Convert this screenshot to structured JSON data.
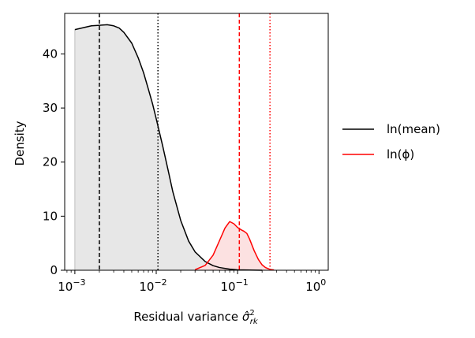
{
  "chart_data": {
    "type": "area",
    "xscale": "log",
    "xlabel": "Residual variance",
    "xlabel_math": "σ̂²rk",
    "ylabel": "Density",
    "xlim": [
      0.00075,
      1.3
    ],
    "ylim": [
      0,
      47.5
    ],
    "xticks": [
      0.001,
      0.01,
      0.1,
      1
    ],
    "xtick_labels": [
      {
        "base": "10",
        "exp": "−3"
      },
      {
        "base": "10",
        "exp": "−2"
      },
      {
        "base": "10",
        "exp": "−1"
      },
      {
        "base": "10",
        "exp": "0"
      }
    ],
    "yticks": [
      0,
      10,
      20,
      30,
      40
    ],
    "ytick_labels": [
      "0",
      "10",
      "20",
      "30",
      "40"
    ],
    "legend_placement": "outside right",
    "series": [
      {
        "name": "ln(mean)",
        "color": "#000000",
        "fill": "#e3e3e3",
        "points": [
          [
            0.001,
            44.5
          ],
          [
            0.0013,
            44.9
          ],
          [
            0.0016,
            45.2
          ],
          [
            0.002,
            45.3
          ],
          [
            0.0025,
            45.4
          ],
          [
            0.003,
            45.2
          ],
          [
            0.0035,
            44.8
          ],
          [
            0.004,
            44.0
          ],
          [
            0.005,
            42.0
          ],
          [
            0.006,
            39.3
          ],
          [
            0.007,
            36.5
          ],
          [
            0.008,
            33.5
          ],
          [
            0.009,
            30.8
          ],
          [
            0.01,
            28.0
          ],
          [
            0.012,
            23.0
          ],
          [
            0.014,
            18.5
          ],
          [
            0.016,
            14.5
          ],
          [
            0.02,
            9.2
          ],
          [
            0.025,
            5.4
          ],
          [
            0.03,
            3.4
          ],
          [
            0.04,
            1.6
          ],
          [
            0.05,
            0.85
          ],
          [
            0.06,
            0.5
          ],
          [
            0.08,
            0.2
          ],
          [
            0.1,
            0.08
          ],
          [
            0.14,
            0.03
          ],
          [
            0.2,
            0.0
          ]
        ]
      },
      {
        "name": "ln(ϕ)",
        "color": "#ff0000",
        "fill": "#fbdcdc",
        "points": [
          [
            0.03,
            0.1
          ],
          [
            0.04,
            0.9
          ],
          [
            0.05,
            2.8
          ],
          [
            0.06,
            5.5
          ],
          [
            0.07,
            7.8
          ],
          [
            0.08,
            9.0
          ],
          [
            0.09,
            8.6
          ],
          [
            0.1,
            7.9
          ],
          [
            0.11,
            7.5
          ],
          [
            0.12,
            7.2
          ],
          [
            0.13,
            6.8
          ],
          [
            0.14,
            5.8
          ],
          [
            0.16,
            3.6
          ],
          [
            0.18,
            2.0
          ],
          [
            0.2,
            1.0
          ],
          [
            0.22,
            0.5
          ],
          [
            0.25,
            0.15
          ],
          [
            0.28,
            0.05
          ]
        ]
      }
    ],
    "reference_lines": [
      {
        "x": 0.002,
        "color": "#000000",
        "style": "dashed"
      },
      {
        "x": 0.0105,
        "color": "#000000",
        "style": "dotted"
      },
      {
        "x": 0.105,
        "color": "#ff0000",
        "style": "dashed"
      },
      {
        "x": 0.25,
        "color": "#ff0000",
        "style": "dotted"
      }
    ]
  }
}
